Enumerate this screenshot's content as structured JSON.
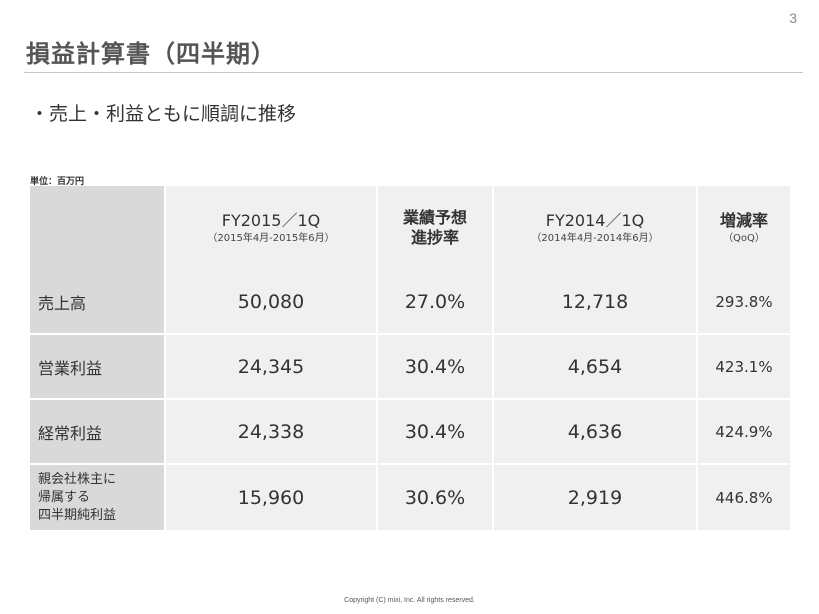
{
  "page_number": "3",
  "title": "損益計算書（四半期）",
  "bullet": "・売上・利益ともに順調に推移",
  "unit_label": "単位：百万円",
  "table": {
    "headers": [
      {
        "main": "FY2015／1Q",
        "sub": "（2015年4月-2015年6月）"
      },
      {
        "line1": "業績予想",
        "line2": "進捗率"
      },
      {
        "main": "FY2014／1Q",
        "sub": "（2014年4月-2014年6月）"
      },
      {
        "main": "増減率",
        "sub": "（QoQ）"
      }
    ],
    "rows": [
      {
        "label": "売上高",
        "fy2015": "50,080",
        "progress": "27.0%",
        "fy2014": "12,718",
        "qoq": "293.8%"
      },
      {
        "label": "営業利益",
        "fy2015": "24,345",
        "progress": "30.4%",
        "fy2014": "4,654",
        "qoq": "423.1%"
      },
      {
        "label": "経常利益",
        "fy2015": "24,338",
        "progress": "30.4%",
        "fy2014": "4,636",
        "qoq": "424.9%"
      },
      {
        "label_lines": [
          "親会社株主に",
          "帰属する",
          "四半期純利益"
        ],
        "fy2015": "15,960",
        "progress": "30.6%",
        "fy2014": "2,919",
        "qoq": "446.8%"
      }
    ]
  },
  "copyright": "Copyright (C) mixi, Inc. All rights reserved."
}
